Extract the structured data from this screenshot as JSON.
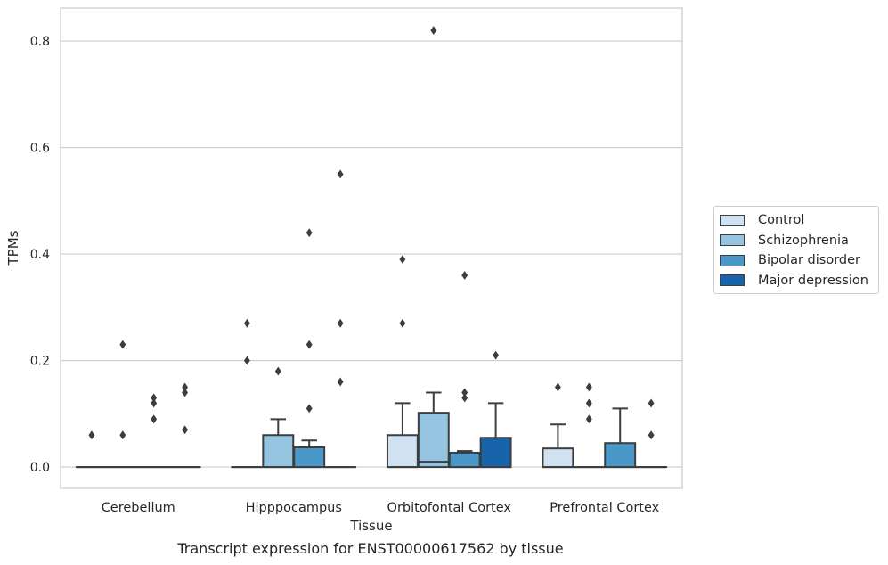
{
  "caption": "Transcript expression for ENST00000617562 by tissue",
  "chart_data": {
    "type": "box",
    "xlabel": "Tissue",
    "ylabel": "TPMs",
    "ylim": [
      -0.04,
      0.862
    ],
    "yticks": [
      0.0,
      0.2,
      0.4,
      0.6,
      0.8
    ],
    "ytick_labels": [
      "0.0",
      "0.2",
      "0.4",
      "0.6",
      "0.8"
    ],
    "grid": "horizontal",
    "legend_position": "right",
    "categories": [
      "Cerebellum",
      "Hipppocampus",
      "Orbitofontal Cortex",
      "Prefrontal Cortex"
    ],
    "series": [
      {
        "name": "Control",
        "color": "#d0e1f2",
        "boxes": [
          {
            "q1": 0,
            "median": 0,
            "q3": 0,
            "whisker_low": 0,
            "whisker_high": 0,
            "outliers": [
              0.06
            ]
          },
          {
            "q1": 0,
            "median": 0,
            "q3": 0,
            "whisker_low": 0,
            "whisker_high": 0,
            "outliers": [
              0.2,
              0.27
            ]
          },
          {
            "q1": 0,
            "median": 0,
            "q3": 0.06,
            "whisker_low": 0,
            "whisker_high": 0.12,
            "outliers": [
              0.27,
              0.39
            ]
          },
          {
            "q1": 0,
            "median": 0,
            "q3": 0.035,
            "whisker_low": 0,
            "whisker_high": 0.08,
            "outliers": [
              0.15
            ]
          }
        ]
      },
      {
        "name": "Schizophrenia",
        "color": "#94c4df",
        "boxes": [
          {
            "q1": 0,
            "median": 0,
            "q3": 0,
            "whisker_low": 0,
            "whisker_high": 0,
            "outliers": [
              0.06,
              0.23
            ]
          },
          {
            "q1": 0,
            "median": 0,
            "q3": 0.06,
            "whisker_low": 0,
            "whisker_high": 0.09,
            "outliers": [
              0.18
            ]
          },
          {
            "q1": 0,
            "median": 0.01,
            "q3": 0.102,
            "whisker_low": 0,
            "whisker_high": 0.14,
            "outliers": [
              0.82
            ]
          },
          {
            "q1": 0,
            "median": 0,
            "q3": 0,
            "whisker_low": 0,
            "whisker_high": 0,
            "outliers": [
              0.09,
              0.12,
              0.15
            ]
          }
        ]
      },
      {
        "name": "Bipolar disorder",
        "color": "#4a98c9",
        "boxes": [
          {
            "q1": 0,
            "median": 0,
            "q3": 0,
            "whisker_low": 0,
            "whisker_high": 0,
            "outliers": [
              0.09,
              0.12,
              0.13
            ]
          },
          {
            "q1": 0,
            "median": 0,
            "q3": 0.037,
            "whisker_low": 0,
            "whisker_high": 0.05,
            "outliers": [
              0.11,
              0.23,
              0.44
            ]
          },
          {
            "q1": 0,
            "median": 0,
            "q3": 0.027,
            "whisker_low": 0,
            "whisker_high": 0.03,
            "outliers": [
              0.13,
              0.14,
              0.36
            ]
          },
          {
            "q1": 0,
            "median": 0,
            "q3": 0.045,
            "whisker_low": 0,
            "whisker_high": 0.11,
            "outliers": []
          }
        ]
      },
      {
        "name": "Major depression",
        "color": "#1764ab",
        "boxes": [
          {
            "q1": 0,
            "median": 0,
            "q3": 0,
            "whisker_low": 0,
            "whisker_high": 0,
            "outliers": [
              0.07,
              0.14,
              0.15
            ]
          },
          {
            "q1": 0,
            "median": 0,
            "q3": 0,
            "whisker_low": 0,
            "whisker_high": 0,
            "outliers": [
              0.16,
              0.27,
              0.55
            ]
          },
          {
            "q1": 0,
            "median": 0,
            "q3": 0.055,
            "whisker_low": 0,
            "whisker_high": 0.12,
            "outliers": [
              0.21
            ]
          },
          {
            "q1": 0,
            "median": 0,
            "q3": 0,
            "whisker_low": 0,
            "whisker_high": 0,
            "outliers": [
              0.06,
              0.12
            ]
          }
        ]
      }
    ]
  }
}
